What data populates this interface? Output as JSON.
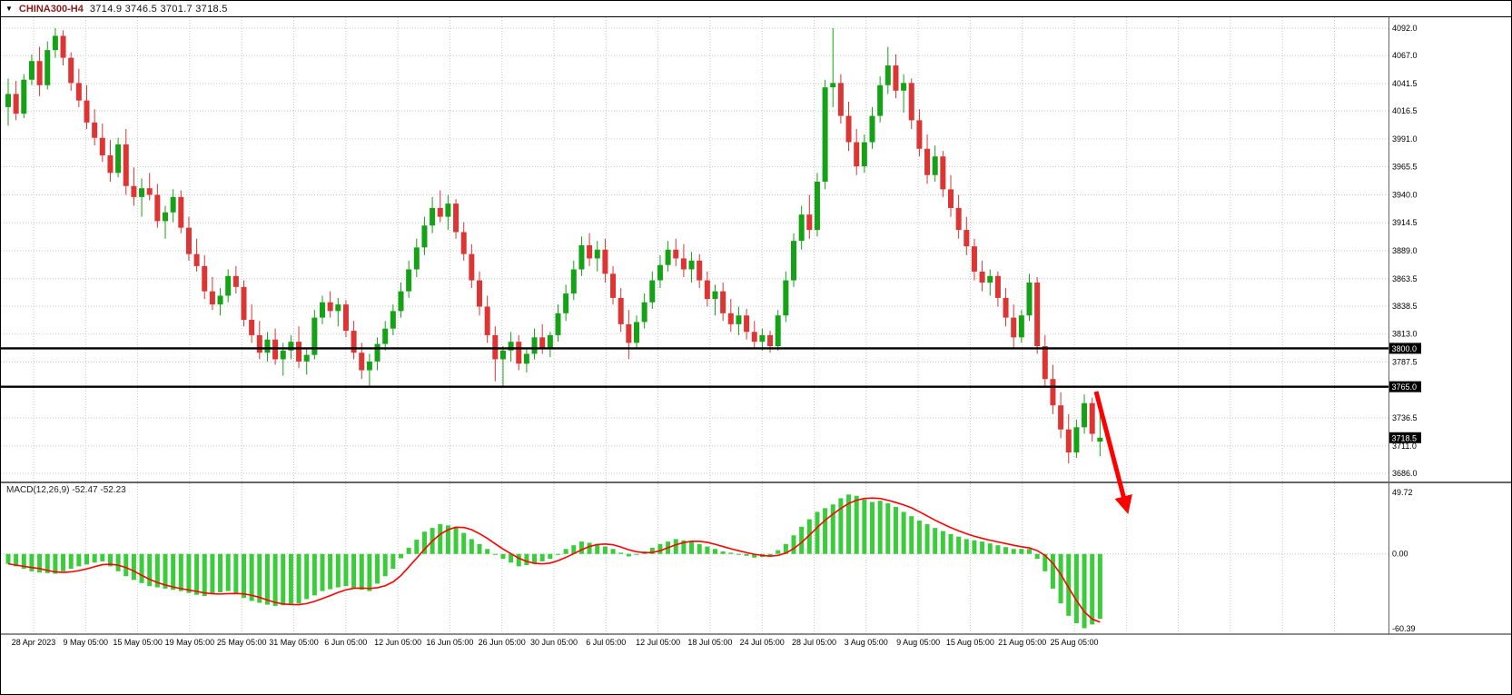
{
  "titlebar": {
    "symbol": "CHINA300-H4",
    "ohlc": "3714.9 3746.5 3701.7 3718.5"
  },
  "colors": {
    "bull": "#16A216",
    "bear": "#DD3434",
    "macd_hist": "#3ACC3A",
    "macd_signal": "#FF0000",
    "grid": "#C6C6C6",
    "level": "#000000",
    "separator": "#666666",
    "arrow": "#FF0000",
    "tag_bg": "#000000",
    "tag_text": "#FFFFFF",
    "symbol_text": "#8B1A1A"
  },
  "chart_data": {
    "type": "candlestick",
    "title": "CHINA300-H4",
    "timeframe": "H4",
    "grid": true,
    "price_axis": {
      "min": 3686.0,
      "max": 4092.0,
      "tick_labels": [
        "4092.0",
        "4067.0",
        "4041.5",
        "4016.5",
        "3991.0",
        "3965.5",
        "3940.0",
        "3914.5",
        "3889.0",
        "3863.5",
        "3838.5",
        "3813.0",
        "3787.5",
        "3736.5",
        "3711.0",
        "3686.0"
      ]
    },
    "time_axis": {
      "labels": [
        "28 Apr 2023",
        "9 May 05:00",
        "15 May 05:00",
        "19 May 05:00",
        "25 May 05:00",
        "31 May 05:00",
        "6 Jun 05:00",
        "12 Jun 05:00",
        "16 Jun 05:00",
        "26 Jun 05:00",
        "30 Jun 05:00",
        "6 Jul 05:00",
        "12 Jul 05:00",
        "18 Jul 05:00",
        "24 Jul 05:00",
        "28 Jul 05:00",
        "3 Aug 05:00",
        "9 Aug 05:00",
        "15 Aug 05:00",
        "21 Aug 05:00",
        "25 Aug 05:00"
      ]
    },
    "levels": [
      {
        "price": 3800.0,
        "label": "3800.0"
      },
      {
        "price": 3765.0,
        "label": "3765.0"
      }
    ],
    "current_price": {
      "price": 3718.5,
      "label": "3718.5"
    },
    "series": {
      "candles_ohlc": [
        [
          4020,
          4046,
          4003,
          4032
        ],
        [
          4032,
          4044,
          4008,
          4014
        ],
        [
          4014,
          4050,
          4010,
          4045
        ],
        [
          4045,
          4068,
          4040,
          4062
        ],
        [
          4062,
          4075,
          4030,
          4040
        ],
        [
          4040,
          4080,
          4036,
          4072
        ],
        [
          4072,
          4092,
          4065,
          4085
        ],
        [
          4085,
          4090,
          4058,
          4065
        ],
        [
          4065,
          4070,
          4035,
          4042
        ],
        [
          4042,
          4055,
          4020,
          4026
        ],
        [
          4026,
          4040,
          4000,
          4006
        ],
        [
          4006,
          4018,
          3985,
          3992
        ],
        [
          3992,
          4005,
          3970,
          3976
        ],
        [
          3976,
          3990,
          3952,
          3960
        ],
        [
          3960,
          3992,
          3956,
          3986
        ],
        [
          3986,
          4000,
          3940,
          3948
        ],
        [
          3948,
          3965,
          3930,
          3938
        ],
        [
          3938,
          3955,
          3920,
          3946
        ],
        [
          3946,
          3960,
          3935,
          3940
        ],
        [
          3940,
          3950,
          3910,
          3916
        ],
        [
          3916,
          3930,
          3900,
          3924
        ],
        [
          3924,
          3945,
          3915,
          3938
        ],
        [
          3938,
          3944,
          3905,
          3910
        ],
        [
          3910,
          3920,
          3880,
          3886
        ],
        [
          3886,
          3900,
          3870,
          3875
        ],
        [
          3875,
          3885,
          3845,
          3852
        ],
        [
          3852,
          3865,
          3835,
          3840
        ],
        [
          3840,
          3855,
          3830,
          3848
        ],
        [
          3848,
          3872,
          3842,
          3866
        ],
        [
          3866,
          3875,
          3850,
          3856
        ],
        [
          3856,
          3862,
          3820,
          3826
        ],
        [
          3826,
          3840,
          3805,
          3812
        ],
        [
          3812,
          3825,
          3790,
          3796
        ],
        [
          3796,
          3815,
          3788,
          3808
        ],
        [
          3808,
          3818,
          3785,
          3790
        ],
        [
          3790,
          3805,
          3775,
          3798
        ],
        [
          3798,
          3812,
          3790,
          3806
        ],
        [
          3806,
          3820,
          3782,
          3788
        ],
        [
          3788,
          3800,
          3776,
          3794
        ],
        [
          3794,
          3835,
          3790,
          3828
        ],
        [
          3828,
          3848,
          3822,
          3842
        ],
        [
          3842,
          3852,
          3828,
          3834
        ],
        [
          3834,
          3846,
          3820,
          3840
        ],
        [
          3840,
          3844,
          3810,
          3816
        ],
        [
          3816,
          3825,
          3790,
          3796
        ],
        [
          3796,
          3805,
          3772,
          3780
        ],
        [
          3780,
          3795,
          3766,
          3788
        ],
        [
          3788,
          3810,
          3780,
          3804
        ],
        [
          3804,
          3825,
          3798,
          3818
        ],
        [
          3818,
          3840,
          3812,
          3834
        ],
        [
          3834,
          3860,
          3828,
          3852
        ],
        [
          3852,
          3880,
          3846,
          3872
        ],
        [
          3872,
          3900,
          3865,
          3892
        ],
        [
          3892,
          3920,
          3885,
          3912
        ],
        [
          3912,
          3938,
          3905,
          3928
        ],
        [
          3928,
          3944,
          3915,
          3920
        ],
        [
          3920,
          3940,
          3908,
          3932
        ],
        [
          3932,
          3936,
          3900,
          3906
        ],
        [
          3906,
          3915,
          3880,
          3886
        ],
        [
          3886,
          3895,
          3855,
          3862
        ],
        [
          3862,
          3870,
          3830,
          3838
        ],
        [
          3838,
          3848,
          3805,
          3812
        ],
        [
          3812,
          3820,
          3770,
          3790
        ],
        [
          3790,
          3802,
          3765,
          3798
        ],
        [
          3798,
          3815,
          3788,
          3806
        ],
        [
          3806,
          3812,
          3780,
          3786
        ],
        [
          3786,
          3800,
          3778,
          3795
        ],
        [
          3795,
          3818,
          3790,
          3810
        ],
        [
          3810,
          3822,
          3795,
          3800
        ],
        [
          3800,
          3815,
          3792,
          3812
        ],
        [
          3812,
          3840,
          3806,
          3832
        ],
        [
          3832,
          3858,
          3825,
          3850
        ],
        [
          3850,
          3880,
          3844,
          3872
        ],
        [
          3872,
          3902,
          3866,
          3894
        ],
        [
          3894,
          3905,
          3875,
          3882
        ],
        [
          3882,
          3898,
          3870,
          3890
        ],
        [
          3890,
          3900,
          3860,
          3868
        ],
        [
          3868,
          3875,
          3840,
          3846
        ],
        [
          3846,
          3855,
          3815,
          3822
        ],
        [
          3822,
          3835,
          3790,
          3805
        ],
        [
          3805,
          3830,
          3800,
          3824
        ],
        [
          3824,
          3850,
          3818,
          3842
        ],
        [
          3842,
          3870,
          3836,
          3862
        ],
        [
          3862,
          3885,
          3855,
          3876
        ],
        [
          3876,
          3898,
          3870,
          3890
        ],
        [
          3890,
          3900,
          3875,
          3882
        ],
        [
          3882,
          3895,
          3865,
          3872
        ],
        [
          3872,
          3888,
          3860,
          3880
        ],
        [
          3880,
          3886,
          3855,
          3862
        ],
        [
          3862,
          3870,
          3838,
          3845
        ],
        [
          3845,
          3858,
          3830,
          3852
        ],
        [
          3852,
          3860,
          3825,
          3832
        ],
        [
          3832,
          3845,
          3815,
          3822
        ],
        [
          3822,
          3838,
          3812,
          3830
        ],
        [
          3830,
          3836,
          3808,
          3815
        ],
        [
          3815,
          3825,
          3800,
          3806
        ],
        [
          3806,
          3818,
          3798,
          3812
        ],
        [
          3812,
          3816,
          3796,
          3802
        ],
        [
          3802,
          3835,
          3798,
          3830
        ],
        [
          3830,
          3870,
          3824,
          3862
        ],
        [
          3862,
          3905,
          3856,
          3898
        ],
        [
          3898,
          3930,
          3890,
          3922
        ],
        [
          3922,
          3940,
          3900,
          3908
        ],
        [
          3908,
          3960,
          3902,
          3952
        ],
        [
          3952,
          4045,
          3945,
          4038
        ],
        [
          4038,
          4092,
          4020,
          4042
        ],
        [
          4042,
          4050,
          4005,
          4012
        ],
        [
          4012,
          4025,
          3980,
          3988
        ],
        [
          3988,
          4000,
          3958,
          3966
        ],
        [
          3966,
          3995,
          3960,
          3988
        ],
        [
          3988,
          4020,
          3982,
          4012
        ],
        [
          4012,
          4048,
          4006,
          4040
        ],
        [
          4040,
          4075,
          4032,
          4058
        ],
        [
          4058,
          4068,
          4028,
          4035
        ],
        [
          4035,
          4050,
          4015,
          4042
        ],
        [
          4042,
          4046,
          4000,
          4008
        ],
        [
          4008,
          4018,
          3975,
          3982
        ],
        [
          3982,
          3995,
          3950,
          3958
        ],
        [
          3958,
          3985,
          3952,
          3975
        ],
        [
          3975,
          3980,
          3938,
          3945
        ],
        [
          3945,
          3958,
          3920,
          3928
        ],
        [
          3928,
          3940,
          3900,
          3908
        ],
        [
          3908,
          3920,
          3885,
          3893
        ],
        [
          3893,
          3900,
          3862,
          3870
        ],
        [
          3870,
          3880,
          3852,
          3860
        ],
        [
          3860,
          3872,
          3848,
          3866
        ],
        [
          3866,
          3870,
          3838,
          3846
        ],
        [
          3846,
          3855,
          3820,
          3828
        ],
        [
          3828,
          3840,
          3800,
          3810
        ],
        [
          3810,
          3835,
          3805,
          3830
        ],
        [
          3830,
          3868,
          3825,
          3860
        ],
        [
          3860,
          3865,
          3795,
          3802
        ],
        [
          3802,
          3812,
          3765,
          3772
        ],
        [
          3772,
          3785,
          3740,
          3748
        ],
        [
          3748,
          3760,
          3718,
          3726
        ],
        [
          3726,
          3740,
          3695,
          3705
        ],
        [
          3705,
          3735,
          3700,
          3728
        ],
        [
          3728,
          3758,
          3722,
          3750
        ],
        [
          3750,
          3755,
          3715,
          3722
        ],
        [
          3714.9,
          3746.5,
          3701.7,
          3718.5
        ]
      ]
    },
    "macd": {
      "display": "MACD(12,26,9) -52.47 -52.23",
      "params": "12,26,9",
      "macd_value": -52.47,
      "signal_value": -52.23,
      "axis_labels": [
        "49.72",
        "0.00",
        "-60.39"
      ],
      "ymax": 49.72,
      "ymin": -60.39,
      "histogram": [
        -8,
        -10,
        -12,
        -14,
        -15,
        -15.5,
        -16,
        -14,
        -12,
        -10,
        -8.5,
        -7,
        -6,
        -10,
        -14,
        -18,
        -21,
        -23.5,
        -26,
        -27,
        -28,
        -29,
        -30,
        -31.5,
        -33,
        -34,
        -32.5,
        -31,
        -30,
        -32.5,
        -35.5,
        -38,
        -39.5,
        -41,
        -42,
        -41.5,
        -40.5,
        -40,
        -36.5,
        -33.5,
        -30,
        -28.5,
        -27,
        -26,
        -27.5,
        -29,
        -30,
        -24,
        -18,
        -12,
        -3.5,
        5,
        11.5,
        18,
        21,
        24,
        23,
        22,
        17,
        12,
        8,
        4,
        0,
        -4,
        -7,
        -10,
        -9,
        -8,
        -6,
        -4,
        0,
        4,
        7,
        10,
        9,
        8,
        6,
        4,
        1,
        -2,
        0,
        2,
        5,
        8,
        10,
        12,
        11,
        10,
        8,
        6,
        4,
        2,
        1,
        0,
        -1.5,
        -3,
        -2.5,
        -2,
        3,
        8,
        15,
        22,
        28,
        34,
        37,
        40,
        45,
        48,
        47,
        44,
        42,
        43,
        41,
        38,
        34,
        30.5,
        27,
        24,
        21,
        18.5,
        16,
        14,
        12,
        11,
        10,
        8.5,
        7,
        5.5,
        4,
        4,
        4,
        -4,
        -14,
        -28,
        -40,
        -50,
        -56,
        -60,
        -57,
        -52.5
      ]
    },
    "annotation": {
      "type": "arrow",
      "direction": "down-right",
      "color": "#FF0000"
    }
  }
}
